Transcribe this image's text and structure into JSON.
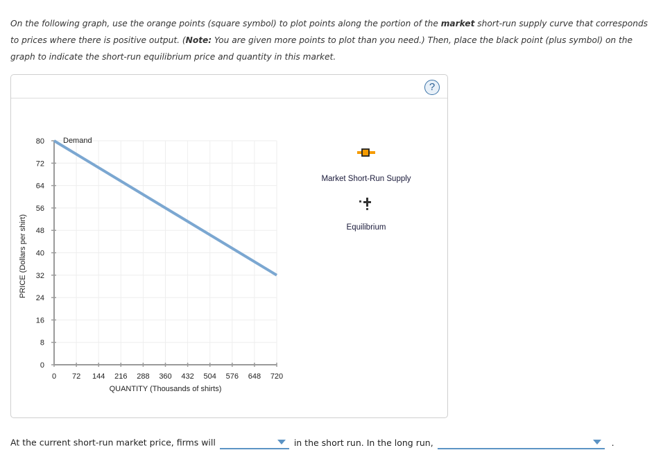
{
  "instructions": {
    "part1": "On the following graph, use the orange points (square symbol) to plot points along the portion of the ",
    "bold1": "market",
    "part2": " short-run supply curve that corresponds to prices where there is positive output. (",
    "bold2": "Note:",
    "part3": " You are given more points to plot than you need.) Then, place the black point (plus symbol) on the graph to indicate the short-run equilibrium price and quantity in this market."
  },
  "help_button": {
    "label": "?",
    "icon": "question-circle-icon"
  },
  "legend": {
    "items": [
      {
        "label": "Market Short-Run Supply",
        "icon": "orange-square-point-icon",
        "color": "#f59b00"
      },
      {
        "label": "Equilibrium",
        "icon": "black-plus-point-icon",
        "color": "#222222"
      }
    ]
  },
  "chart_data": {
    "type": "line",
    "title": "",
    "xlabel": "QUANTITY (Thousands of shirts)",
    "ylabel": "PRICE (Dollars per shirt)",
    "xlim": [
      0,
      720
    ],
    "ylim": [
      0,
      80
    ],
    "x_ticks": [
      "0",
      "72",
      "144",
      "216",
      "288",
      "360",
      "432",
      "504",
      "576",
      "648",
      "720"
    ],
    "y_ticks": [
      "0",
      "8",
      "16",
      "24",
      "32",
      "40",
      "48",
      "56",
      "64",
      "72",
      "80"
    ],
    "grid": true,
    "series": [
      {
        "name": "Demand",
        "color": "#7ba7d1",
        "points": [
          [
            0,
            80
          ],
          [
            720,
            32
          ]
        ]
      }
    ],
    "annotations": [
      {
        "text": "Demand",
        "x": 0,
        "y": 80
      }
    ]
  },
  "bottom_text": {
    "part1": "At the current short-run market price, firms will",
    "part2": "in the short run. In the long run,",
    "part3": ".",
    "dropdown1": {
      "selected": ""
    },
    "dropdown2": {
      "selected": ""
    }
  }
}
